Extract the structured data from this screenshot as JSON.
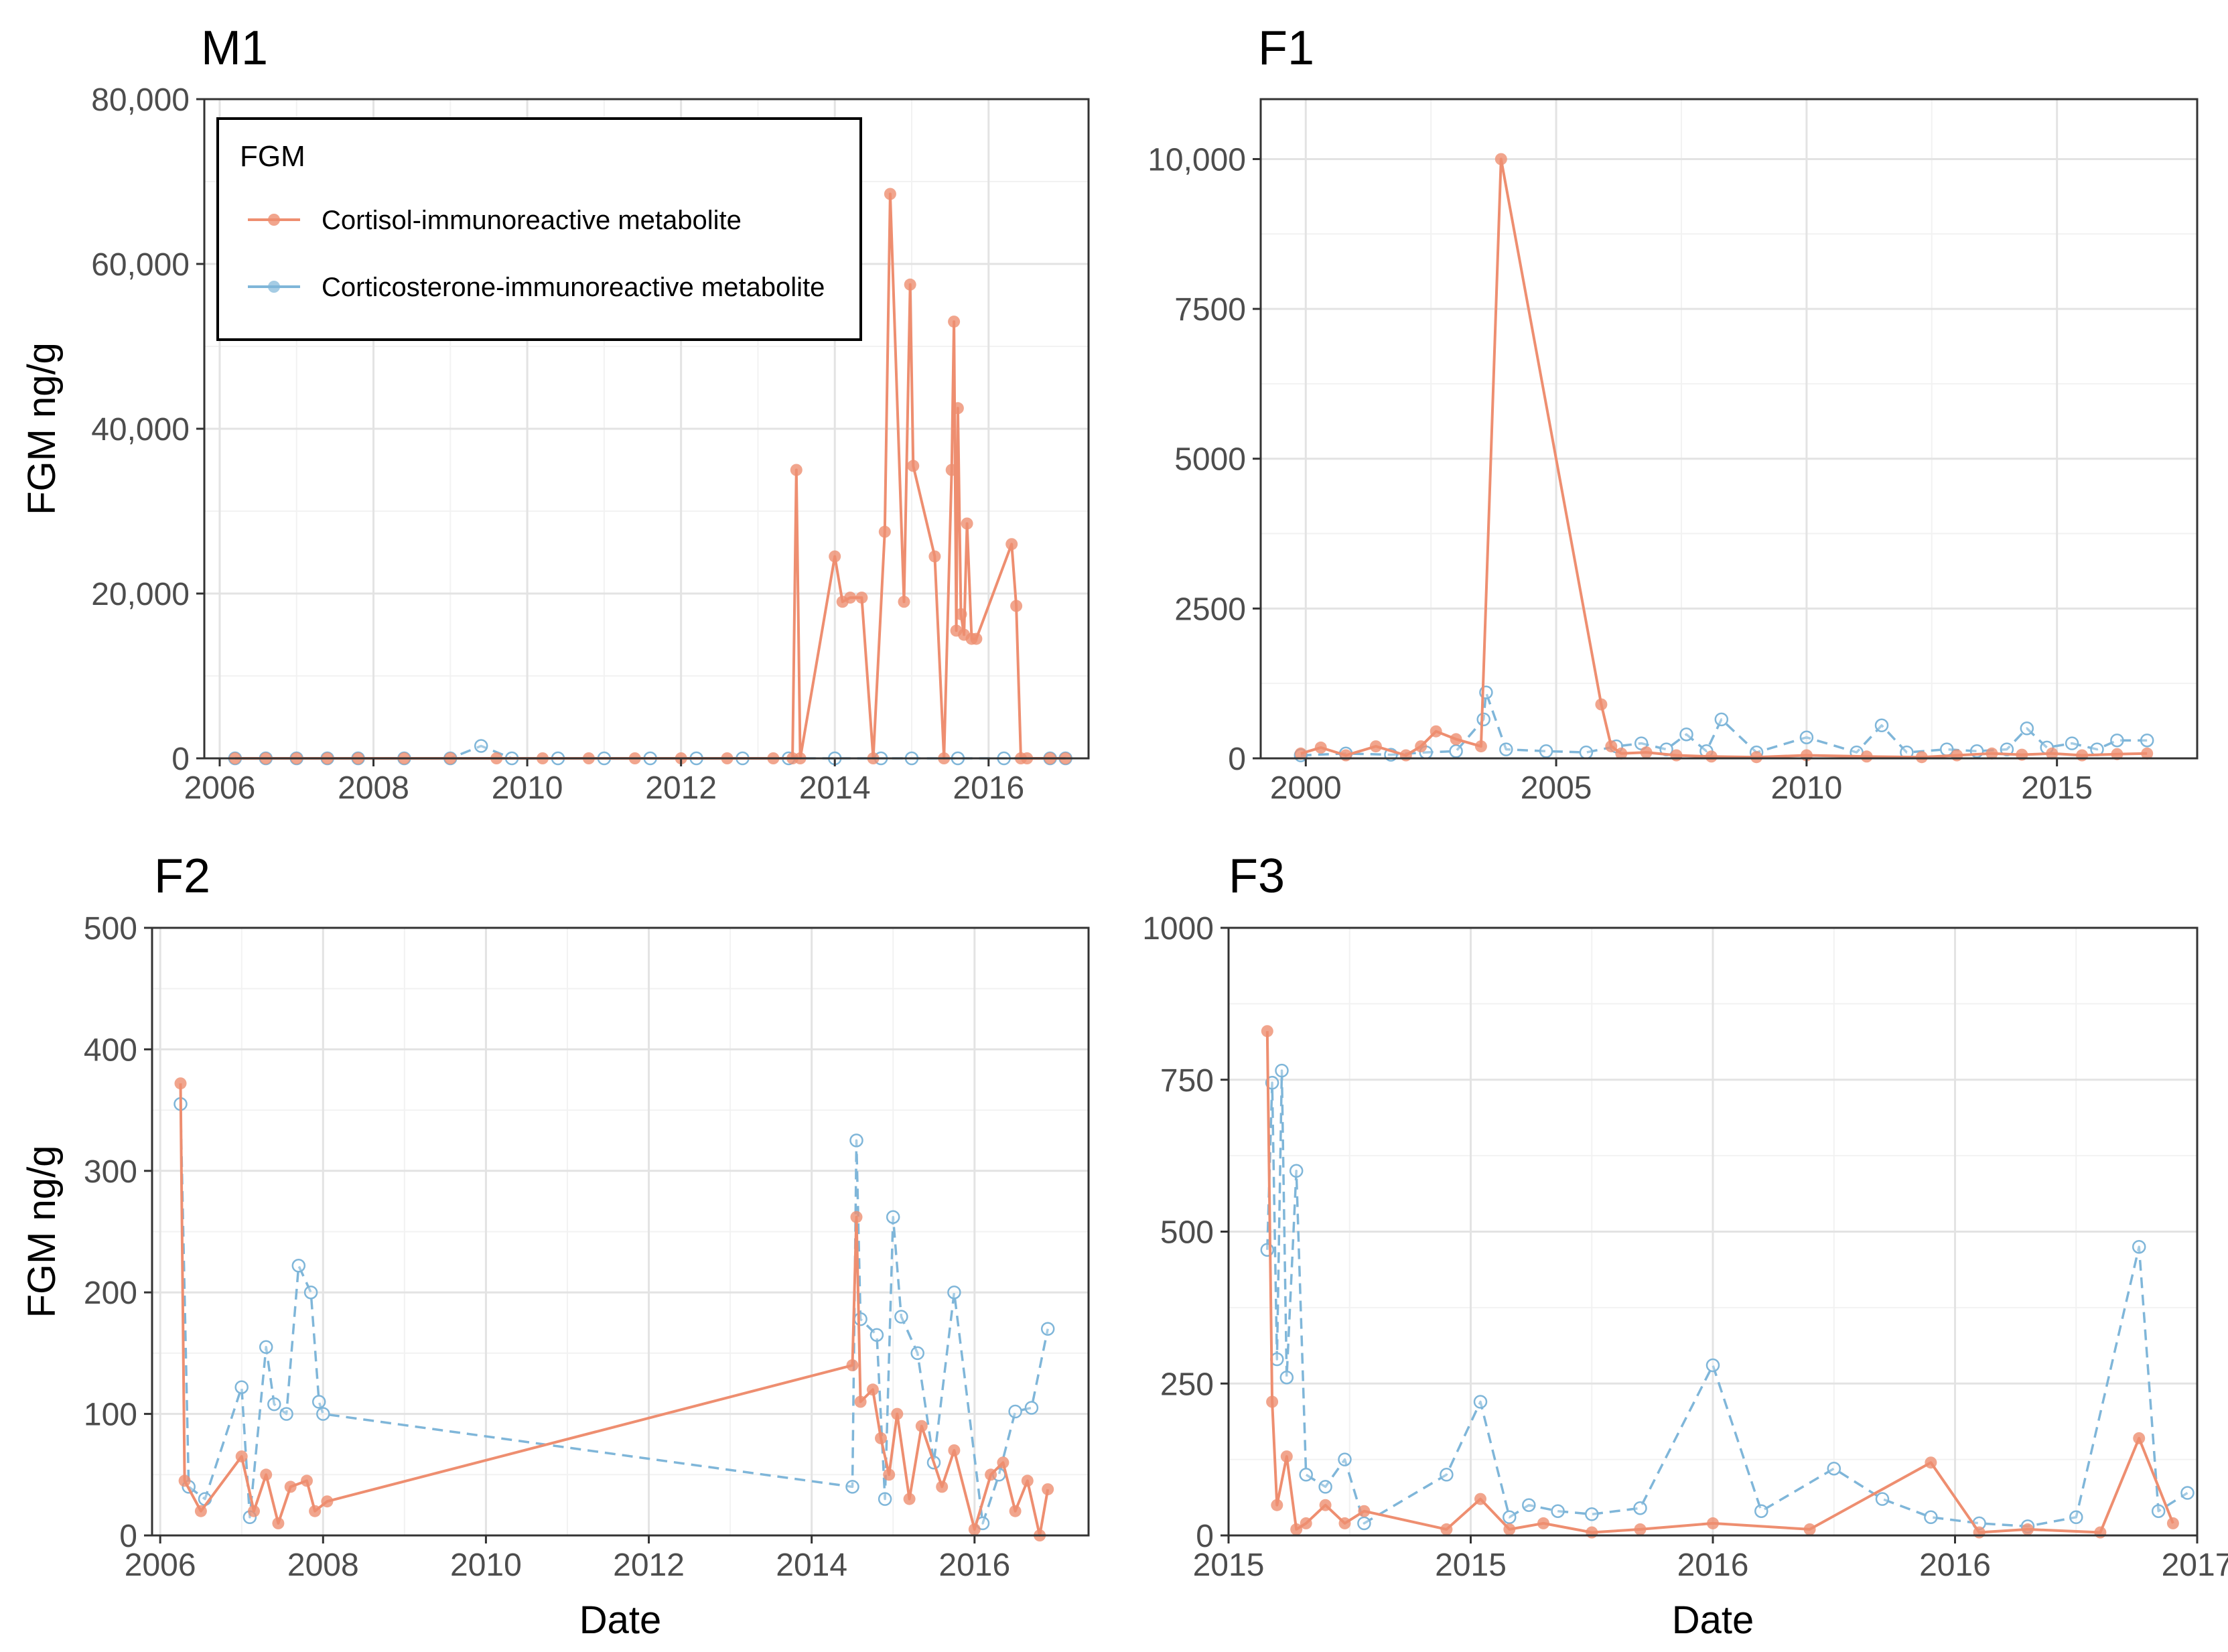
{
  "chart_data": [
    {
      "type": "line",
      "panel": "M1",
      "title": "M1",
      "xlabel": "",
      "ylabel": "FGM ng/g",
      "xlim": [
        2005.8,
        2017.3
      ],
      "ylim": [
        0,
        80000
      ],
      "xticks": [
        2006,
        2008,
        2010,
        2012,
        2014,
        2016
      ],
      "xtick_labels": [
        "2006",
        "2008",
        "2010",
        "2012",
        "2014",
        "2016"
      ],
      "yticks": [
        0,
        20000,
        40000,
        60000,
        80000
      ],
      "ytick_labels": [
        "0",
        "20,000",
        "40,000",
        "60,000",
        "80,000"
      ],
      "legend": {
        "title": "FGM",
        "position": "top-left",
        "entries": [
          "Cortisol-immunoreactive metabolite",
          "Corticosterone-immunoreactive metabolite"
        ]
      },
      "series": [
        {
          "name": "Cortisol-immunoreactive metabolite",
          "x": [
            2006.2,
            2006.6,
            2007.0,
            2007.4,
            2007.8,
            2008.4,
            2009.0,
            2009.6,
            2010.2,
            2010.8,
            2011.4,
            2012.0,
            2012.6,
            2013.2,
            2013.45,
            2013.5,
            2013.55,
            2014.0,
            2014.1,
            2014.2,
            2014.35,
            2014.5,
            2014.65,
            2014.72,
            2014.9,
            2014.98,
            2015.02,
            2015.3,
            2015.42,
            2015.52,
            2015.55,
            2015.58,
            2015.6,
            2015.64,
            2015.68,
            2015.72,
            2015.78,
            2015.84,
            2016.3,
            2016.36,
            2016.42,
            2016.5,
            2016.8,
            2017.0
          ],
          "values": [
            0,
            0,
            0,
            0,
            0,
            0,
            0,
            0,
            0,
            0,
            0,
            0,
            0,
            0,
            0,
            35000,
            0,
            24500,
            19000,
            19500,
            19500,
            0,
            27500,
            68500,
            19000,
            57500,
            35500,
            24500,
            0,
            35000,
            53000,
            15500,
            42500,
            17500,
            15000,
            28500,
            14500,
            14500,
            26000,
            18500,
            0,
            0,
            0,
            0
          ]
        },
        {
          "name": "Corticosterone-immunoreactive metabolite",
          "x": [
            2006.2,
            2006.6,
            2007.0,
            2007.4,
            2007.8,
            2008.4,
            2009.0,
            2009.4,
            2009.8,
            2010.4,
            2011.0,
            2011.6,
            2012.2,
            2012.8,
            2013.4,
            2014.0,
            2014.6,
            2015.0,
            2015.6,
            2016.2,
            2016.8,
            2017.0
          ],
          "values": [
            0,
            0,
            0,
            0,
            0,
            0,
            0,
            1500,
            0,
            0,
            0,
            0,
            0,
            0,
            0,
            0,
            0,
            0,
            0,
            0,
            0,
            0
          ]
        }
      ]
    },
    {
      "type": "line",
      "panel": "F1",
      "title": "F1",
      "xlabel": "",
      "ylabel": "",
      "xlim": [
        1999.1,
        2017.8
      ],
      "ylim": [
        0,
        11000
      ],
      "xticks": [
        2000,
        2005,
        2010,
        2015
      ],
      "xtick_labels": [
        "2000",
        "2005",
        "2010",
        "2015"
      ],
      "yticks": [
        0,
        2500,
        5000,
        7500,
        10000
      ],
      "ytick_labels": [
        "0",
        "2500",
        "5000",
        "7500",
        "10,000"
      ],
      "series": [
        {
          "name": "Cortisol-immunoreactive metabolite",
          "x": [
            1999.9,
            2000.3,
            2000.8,
            2001.4,
            2002.0,
            2002.3,
            2002.6,
            2003.0,
            2003.5,
            2003.9,
            2005.9,
            2006.1,
            2006.3,
            2006.8,
            2007.4,
            2008.1,
            2009.0,
            2010.0,
            2011.2,
            2012.3,
            2013.0,
            2013.7,
            2014.3,
            2014.9,
            2015.5,
            2016.2,
            2016.8
          ],
          "values": [
            80,
            180,
            50,
            200,
            50,
            200,
            450,
            320,
            200,
            10000,
            900,
            200,
            80,
            100,
            50,
            30,
            20,
            50,
            30,
            20,
            50,
            80,
            60,
            80,
            50,
            70,
            80
          ]
        },
        {
          "name": "Corticosterone-immunoreactive metabolite",
          "x": [
            1999.9,
            2000.8,
            2001.7,
            2002.4,
            2003.0,
            2003.55,
            2003.6,
            2004.0,
            2004.8,
            2005.6,
            2006.2,
            2006.7,
            2007.2,
            2007.6,
            2008.0,
            2008.3,
            2009.0,
            2010.0,
            2011.0,
            2011.5,
            2012.0,
            2012.8,
            2013.4,
            2014.0,
            2014.4,
            2014.8,
            2015.3,
            2015.8,
            2016.2,
            2016.8
          ],
          "values": [
            50,
            80,
            60,
            100,
            120,
            650,
            1100,
            150,
            120,
            100,
            200,
            250,
            150,
            400,
            120,
            650,
            100,
            350,
            100,
            550,
            100,
            150,
            120,
            150,
            500,
            180,
            250,
            150,
            300,
            300
          ]
        }
      ]
    },
    {
      "type": "line",
      "panel": "F2",
      "title": "F2",
      "xlabel": "Date",
      "ylabel": "FGM ng/g",
      "xlim": [
        2005.9,
        2017.4
      ],
      "ylim": [
        0,
        500
      ],
      "xticks": [
        2006,
        2008,
        2010,
        2012,
        2014,
        2016
      ],
      "xtick_labels": [
        "2006",
        "2008",
        "2010",
        "2012",
        "2014",
        "2016"
      ],
      "yticks": [
        0,
        100,
        200,
        300,
        400,
        500
      ],
      "ytick_labels": [
        "0",
        "100",
        "200",
        "300",
        "400",
        "500"
      ],
      "series": [
        {
          "name": "Cortisol-immunoreactive metabolite",
          "x": [
            2006.25,
            2006.3,
            2006.5,
            2007.0,
            2007.15,
            2007.3,
            2007.45,
            2007.6,
            2007.8,
            2007.9,
            2008.05,
            2014.5,
            2014.55,
            2014.6,
            2014.75,
            2014.85,
            2014.95,
            2015.05,
            2015.2,
            2015.35,
            2015.6,
            2015.75,
            2016.0,
            2016.2,
            2016.35,
            2016.5,
            2016.65,
            2016.8,
            2016.9
          ],
          "values": [
            372,
            45,
            20,
            65,
            20,
            50,
            10,
            40,
            45,
            20,
            28,
            140,
            262,
            110,
            120,
            80,
            50,
            100,
            30,
            90,
            40,
            70,
            5,
            50,
            60,
            20,
            45,
            0,
            38
          ]
        },
        {
          "name": "Corticosterone-immunoreactive metabolite",
          "x": [
            2006.25,
            2006.35,
            2006.55,
            2007.0,
            2007.1,
            2007.3,
            2007.4,
            2007.55,
            2007.7,
            2007.85,
            2007.95,
            2008.0,
            2014.5,
            2014.55,
            2014.6,
            2014.8,
            2014.9,
            2015.0,
            2015.1,
            2015.3,
            2015.5,
            2015.75,
            2016.1,
            2016.3,
            2016.5,
            2016.7,
            2016.9
          ],
          "values": [
            355,
            40,
            30,
            122,
            15,
            155,
            108,
            100,
            222,
            200,
            110,
            100,
            40,
            325,
            178,
            165,
            30,
            262,
            180,
            150,
            60,
            200,
            10,
            50,
            102,
            105,
            170
          ]
        }
      ]
    },
    {
      "type": "line",
      "panel": "F3",
      "title": "F3",
      "xlabel": "Date",
      "ylabel": "",
      "xlim": [
        2015.0,
        2017.0
      ],
      "ylim": [
        0,
        1000
      ],
      "xticks": [
        2015.0,
        2015.5,
        2016.0,
        2016.5,
        2017.0
      ],
      "xtick_labels": [
        "2015",
        "2015",
        "2016",
        "2016",
        "2017"
      ],
      "yticks": [
        0,
        250,
        500,
        750,
        1000
      ],
      "ytick_labels": [
        "0",
        "250",
        "500",
        "750",
        "1000"
      ],
      "series": [
        {
          "name": "Cortisol-immunoreactive metabolite",
          "x": [
            2015.08,
            2015.09,
            2015.1,
            2015.12,
            2015.14,
            2015.16,
            2015.2,
            2015.24,
            2015.28,
            2015.45,
            2015.52,
            2015.58,
            2015.65,
            2015.75,
            2015.85,
            2016.0,
            2016.2,
            2016.45,
            2016.55,
            2016.65,
            2016.8,
            2016.88,
            2016.95
          ],
          "values": [
            830,
            220,
            50,
            130,
            10,
            20,
            50,
            20,
            40,
            10,
            60,
            10,
            20,
            5,
            10,
            20,
            10,
            120,
            5,
            10,
            5,
            160,
            20
          ]
        },
        {
          "name": "Corticosterone-immunoreactive metabolite",
          "x": [
            2015.08,
            2015.09,
            2015.1,
            2015.11,
            2015.12,
            2015.14,
            2015.16,
            2015.2,
            2015.24,
            2015.28,
            2015.45,
            2015.52,
            2015.58,
            2015.62,
            2015.68,
            2015.75,
            2015.85,
            2016.0,
            2016.1,
            2016.25,
            2016.35,
            2016.45,
            2016.55,
            2016.65,
            2016.75,
            2016.88,
            2016.92,
            2016.98
          ],
          "values": [
            470,
            745,
            290,
            765,
            260,
            600,
            100,
            80,
            125,
            20,
            100,
            220,
            30,
            50,
            40,
            35,
            45,
            280,
            40,
            110,
            60,
            30,
            20,
            15,
            30,
            475,
            40,
            70
          ]
        }
      ]
    }
  ],
  "colors": {
    "cortisol": "#EE8E70",
    "corticosterone": "#7FB6D9"
  }
}
